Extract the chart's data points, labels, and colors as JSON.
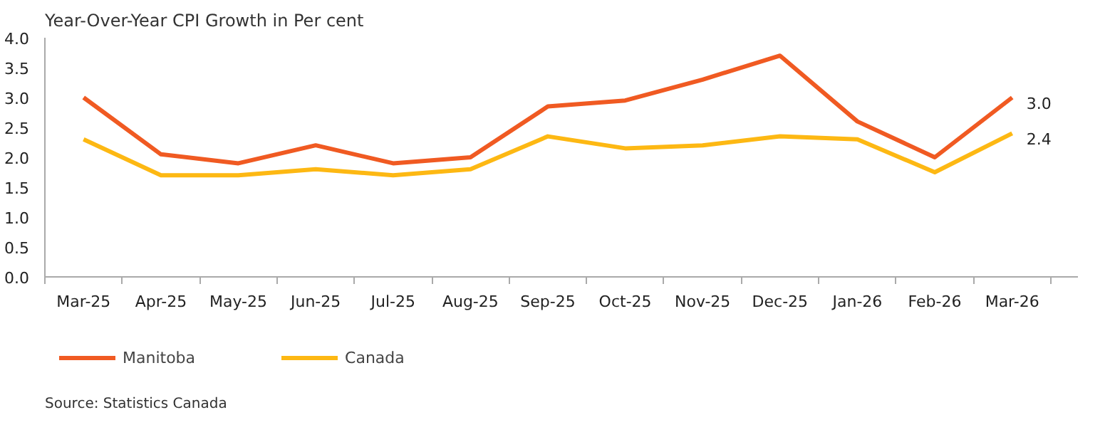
{
  "chart_data": {
    "type": "line",
    "title": "Year-Over-Year CPI Growth in Per cent",
    "categories": [
      "Mar-25",
      "Apr-25",
      "May-25",
      "Jun-25",
      "Jul-25",
      "Aug-25",
      "Sep-25",
      "Oct-25",
      "Nov-25",
      "Dec-25",
      "Jan-26",
      "Feb-26",
      "Mar-26"
    ],
    "series": [
      {
        "name": "Manitoba",
        "color": "#f05a22",
        "values": [
          3.0,
          2.05,
          1.9,
          2.2,
          1.9,
          2.0,
          2.85,
          2.95,
          3.3,
          3.7,
          2.6,
          2.0,
          3.0
        ],
        "value_labels": [
          null,
          null,
          null,
          null,
          null,
          null,
          null,
          null,
          null,
          null,
          null,
          null,
          "3.0"
        ]
      },
      {
        "name": "Canada",
        "color": "#fdb813",
        "values": [
          2.3,
          1.7,
          1.7,
          1.8,
          1.7,
          1.8,
          2.35,
          2.15,
          2.2,
          2.35,
          2.3,
          1.75,
          2.4
        ],
        "value_labels": [
          null,
          null,
          null,
          null,
          null,
          null,
          null,
          null,
          null,
          null,
          null,
          null,
          "2.4"
        ]
      }
    ],
    "ylim": [
      0,
      4
    ],
    "yticks": [
      "0.0",
      "0.5",
      "1.0",
      "1.5",
      "2.0",
      "2.5",
      "3.0",
      "3.5",
      "4.0"
    ],
    "grid": false,
    "legend": "bottom left",
    "marker": "none",
    "line_style": "solid",
    "annotations": [
      "Source: Statistics Canada"
    ]
  }
}
